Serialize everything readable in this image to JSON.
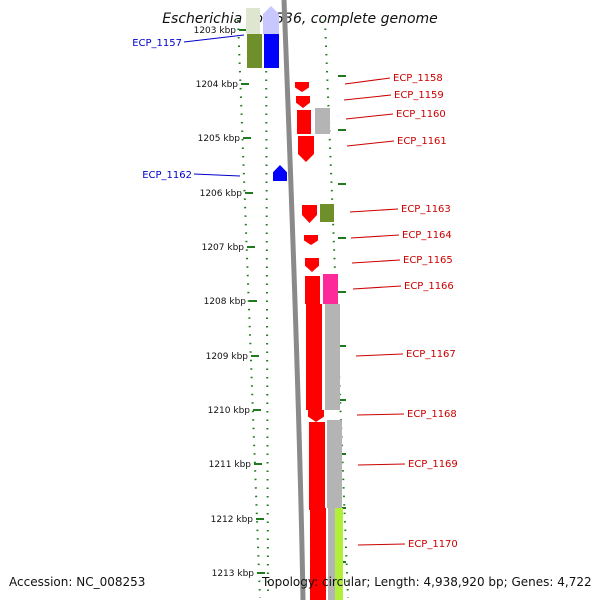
{
  "title": "Escherichia coli 536, complete genome",
  "footer": {
    "accession": "Accession: NC_008253",
    "topology": "Topology: circular; Length: 4,938,920 bp; Genes: 4,722"
  },
  "colors": {
    "backbone": "#8a8a8a",
    "ruler": "#1f7a1f",
    "reverse_label": "#0000cc",
    "forward_label": "#cc0000",
    "forward_gene": "#ff0000",
    "reverse_gene": "#0000ff",
    "olive": "#6e8f2a",
    "gray": "#b4b4b4",
    "magenta": "#ff2a9a",
    "lime": "#b2ef3a",
    "pale": "#dfe6cf",
    "pale_blue": "#c8c8ff"
  },
  "ruler": {
    "unit": "kbp",
    "ticks": [
      "1203 kbp",
      "1204 kbp",
      "1205 kbp",
      "1206 kbp",
      "1207 kbp",
      "1208 kbp",
      "1209 kbp",
      "1210 kbp",
      "1211 kbp",
      "1212 kbp",
      "1213 kbp"
    ]
  },
  "genes": [
    {
      "label": "ECP_1157",
      "strand": "reverse"
    },
    {
      "label": "ECP_1158",
      "strand": "forward"
    },
    {
      "label": "ECP_1159",
      "strand": "forward"
    },
    {
      "label": "ECP_1160",
      "strand": "forward"
    },
    {
      "label": "ECP_1161",
      "strand": "forward"
    },
    {
      "label": "ECP_1162",
      "strand": "reverse"
    },
    {
      "label": "ECP_1163",
      "strand": "forward"
    },
    {
      "label": "ECP_1164",
      "strand": "forward"
    },
    {
      "label": "ECP_1165",
      "strand": "forward"
    },
    {
      "label": "ECP_1166",
      "strand": "forward"
    },
    {
      "label": "ECP_1167",
      "strand": "forward"
    },
    {
      "label": "ECP_1168",
      "strand": "forward"
    },
    {
      "label": "ECP_1169",
      "strand": "forward"
    },
    {
      "label": "ECP_1170",
      "strand": "forward"
    }
  ]
}
